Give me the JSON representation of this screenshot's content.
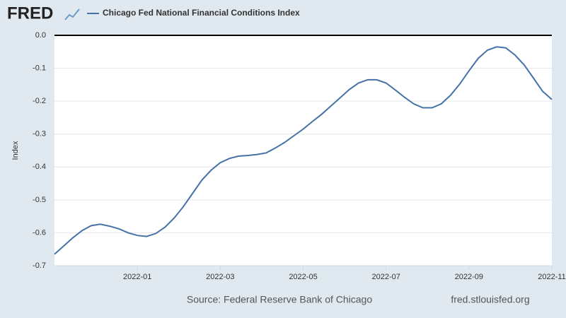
{
  "chart_data": {
    "type": "line",
    "logo": "FRED",
    "series": [
      {
        "name": "Chicago Fed National Financial Conditions Index",
        "color": "#4572a7",
        "values": [
          -0.665,
          -0.64,
          -0.615,
          -0.593,
          -0.578,
          -0.574,
          -0.58,
          -0.588,
          -0.6,
          -0.608,
          -0.611,
          -0.602,
          -0.583,
          -0.555,
          -0.52,
          -0.48,
          -0.44,
          -0.41,
          -0.387,
          -0.374,
          -0.367,
          -0.365,
          -0.362,
          -0.357,
          -0.342,
          -0.325,
          -0.305,
          -0.285,
          -0.262,
          -0.24,
          -0.215,
          -0.19,
          -0.165,
          -0.145,
          -0.135,
          -0.135,
          -0.145,
          -0.166,
          -0.188,
          -0.208,
          -0.22,
          -0.22,
          -0.208,
          -0.182,
          -0.148,
          -0.108,
          -0.07,
          -0.045,
          -0.035,
          -0.038,
          -0.06,
          -0.09,
          -0.13,
          -0.17,
          -0.195
        ]
      }
    ],
    "y_label": "Index",
    "ylim": [
      -0.7,
      0
    ],
    "yticks": [
      {
        "value": 0,
        "label": "0.0"
      },
      -0.1,
      -0.2,
      -0.3,
      -0.4,
      -0.5,
      -0.6,
      -0.7
    ],
    "xlim": [
      "2021-11",
      "2022-11"
    ],
    "xticks": [
      "2022-01",
      "2022-03",
      "2022-05",
      "2022-07",
      "2022-09",
      "2022-11"
    ],
    "grid": true,
    "source": "Source: Federal Reserve Bank of Chicago",
    "site": "fred.stlouisfed.org"
  }
}
